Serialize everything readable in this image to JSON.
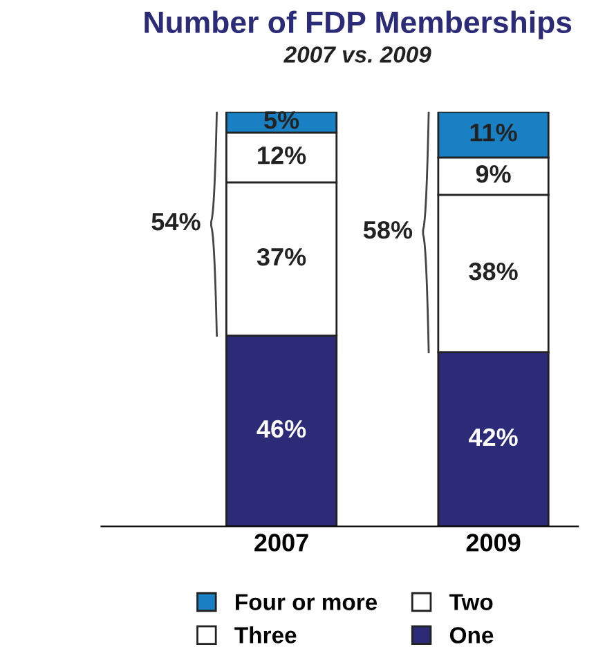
{
  "chart_data": {
    "type": "bar",
    "stacked": true,
    "title": "Number of FDP Memberships",
    "subtitle": "2007 vs. 2009",
    "categories": [
      "2007",
      "2009"
    ],
    "series": [
      {
        "name": "One",
        "color": "#2b2b78",
        "values": [
          46,
          42
        ],
        "value_labels": [
          "46%",
          "42%"
        ]
      },
      {
        "name": "Two",
        "color": "#ffffff",
        "values": [
          37,
          38
        ],
        "value_labels": [
          "37%",
          "38%"
        ]
      },
      {
        "name": "Three",
        "color": "#ffffff",
        "values": [
          12,
          9
        ],
        "value_labels": [
          "12%",
          "9%"
        ]
      },
      {
        "name": "Four or more",
        "color": "#1a80c4",
        "values": [
          5,
          11
        ],
        "value_labels": [
          "5%",
          "11%"
        ]
      }
    ],
    "annotations": [
      "54%",
      "58%"
    ],
    "legend": "bottom",
    "grid": false
  }
}
